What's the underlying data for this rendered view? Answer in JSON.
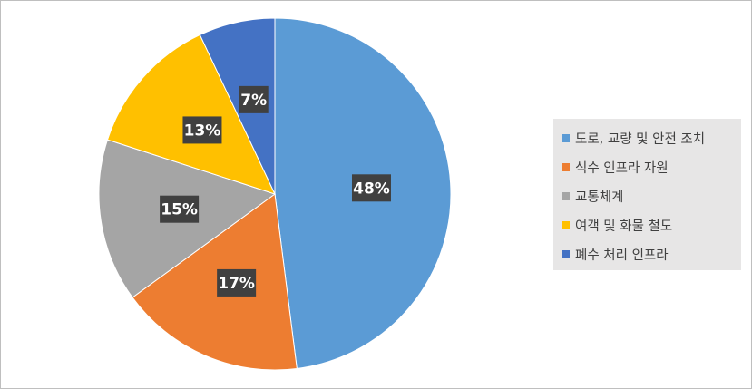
{
  "chart_data": {
    "type": "pie",
    "categories": [
      "도로, 교량 및 안전 조치",
      "식수 인프라 자원",
      "교통체계",
      "여객 및 화물 철도",
      "폐수 처리 인프라"
    ],
    "values": [
      48,
      17,
      15,
      13,
      7
    ],
    "data_labels": [
      "48%",
      "17%",
      "15%",
      "13%",
      "7%"
    ],
    "colors": [
      "#5b9bd5",
      "#ed7d31",
      "#a5a5a5",
      "#ffc000",
      "#4472c4"
    ],
    "legend_position": "right",
    "title": ""
  }
}
